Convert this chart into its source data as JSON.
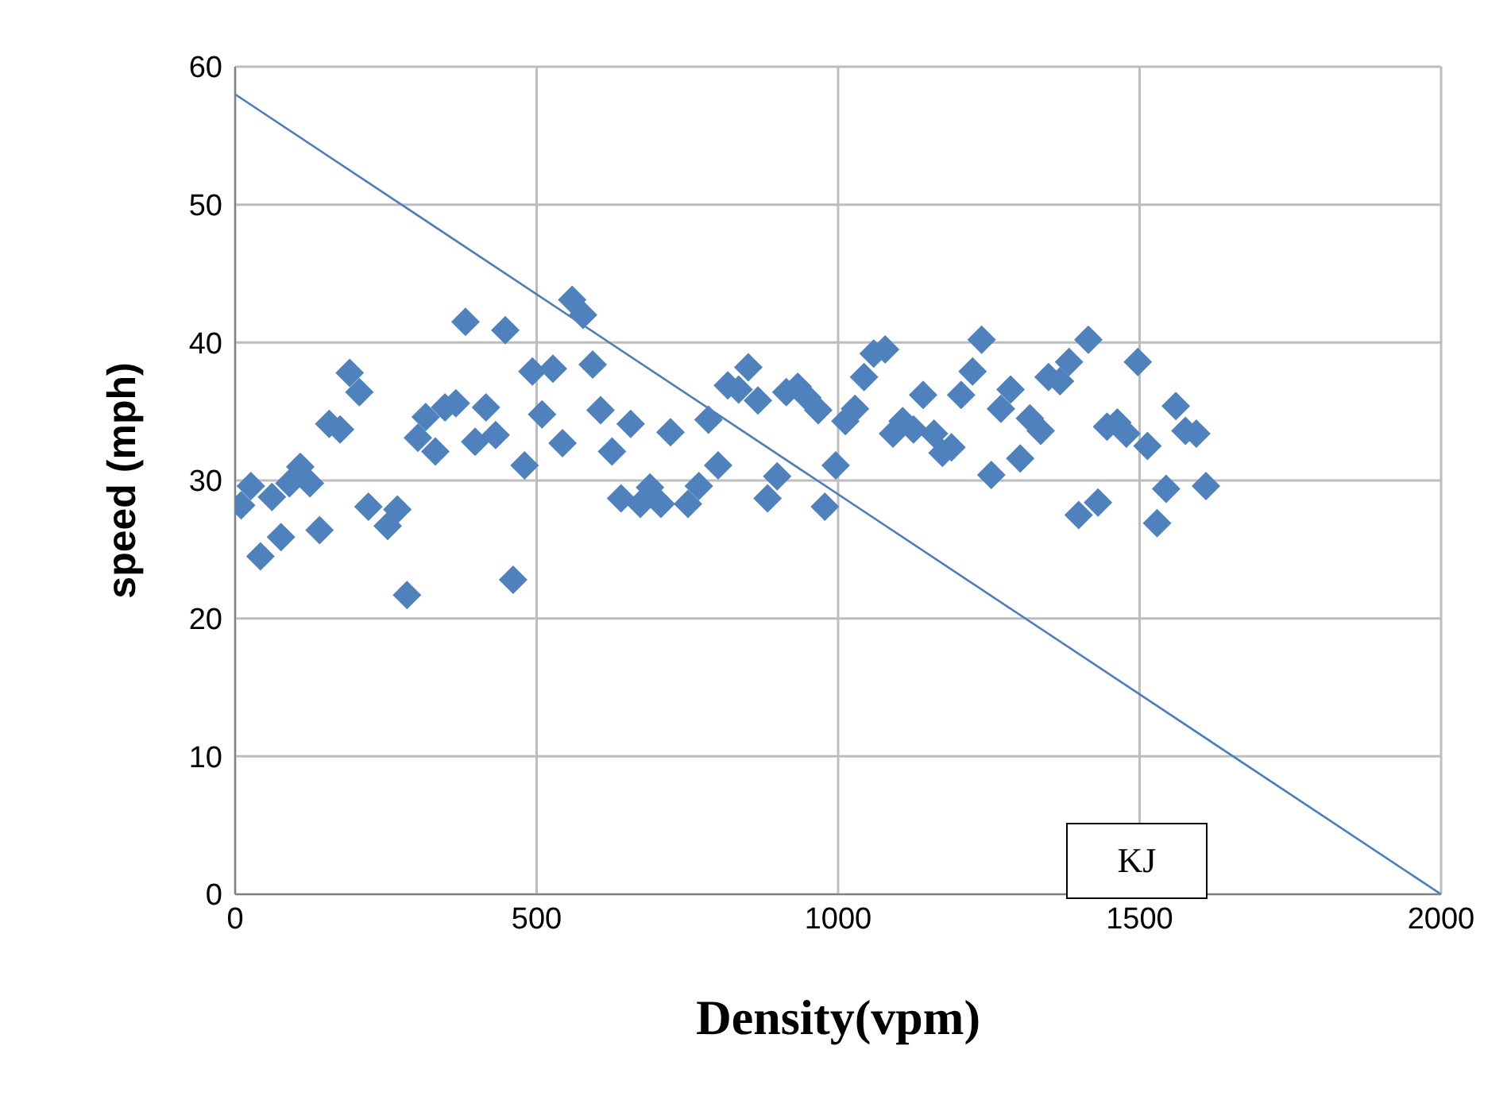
{
  "chart_data": {
    "type": "scatter",
    "xlabel": "Density(vpm)",
    "ylabel": "speed (mph)",
    "xlim": [
      0,
      2000
    ],
    "xticks": [
      0,
      500,
      1000,
      1500,
      2000
    ],
    "ylim": [
      0,
      60
    ],
    "yticks": [
      0,
      10,
      20,
      30,
      40,
      50,
      60
    ],
    "grid": true,
    "marker": "diamond",
    "annotations": [
      "KJ"
    ],
    "series": [
      {
        "color": "#4f81bd",
        "x": [
          10,
          26,
          42,
          61,
          76,
          90,
          108,
          124,
          140,
          156,
          174,
          190,
          206,
          221,
          253,
          269,
          285,
          303,
          316,
          332,
          348,
          366,
          382,
          398,
          416,
          432,
          448,
          461,
          480,
          493,
          509,
          527,
          543,
          559,
          577,
          593,
          606,
          625,
          640,
          656,
          672,
          688,
          706,
          722,
          751,
          769,
          785,
          801,
          817,
          835,
          851,
          867,
          883,
          899,
          914,
          933,
          949,
          967,
          978,
          996,
          1012,
          1028,
          1043,
          1059,
          1078,
          1091,
          1107,
          1125,
          1141,
          1159,
          1173,
          1188,
          1204,
          1223,
          1238,
          1254,
          1270,
          1286,
          1302,
          1318,
          1336,
          1349,
          1368,
          1383,
          1399,
          1415,
          1431,
          1446,
          1463,
          1478,
          1497,
          1513,
          1529,
          1544,
          1560,
          1576,
          1594,
          1610
        ],
        "values": [
          28.2,
          29.6,
          24.5,
          28.8,
          25.9,
          29.8,
          31.0,
          29.8,
          26.4,
          34.1,
          33.7,
          37.8,
          36.4,
          28.1,
          26.7,
          27.9,
          21.7,
          33.1,
          34.6,
          32.1,
          35.3,
          35.6,
          41.5,
          32.8,
          35.3,
          33.3,
          40.9,
          22.8,
          31.1,
          37.9,
          34.8,
          38.1,
          32.7,
          43.1,
          42.0,
          38.4,
          35.1,
          32.1,
          28.7,
          34.1,
          28.3,
          29.5,
          28.3,
          33.5,
          28.3,
          29.6,
          34.4,
          31.1,
          36.9,
          36.6,
          38.2,
          35.8,
          28.7,
          30.3,
          36.4,
          36.8,
          36.0,
          35.1,
          28.1,
          31.1,
          34.3,
          35.2,
          37.5,
          39.2,
          39.5,
          33.4,
          34.3,
          33.7,
          36.2,
          33.4,
          32.0,
          32.4,
          36.2,
          37.9,
          40.2,
          30.4,
          35.2,
          36.6,
          31.6,
          34.5,
          33.6,
          37.5,
          37.2,
          38.6,
          27.5,
          40.2,
          28.4,
          33.9,
          34.2,
          33.4,
          38.6,
          32.5,
          26.9,
          29.4,
          35.4,
          33.6,
          33.4,
          29.6
        ]
      },
      {
        "type": "line",
        "color": "#4a7ebb",
        "x": [
          0,
          2000
        ],
        "values": [
          58,
          0
        ],
        "marker": "none"
      }
    ]
  }
}
